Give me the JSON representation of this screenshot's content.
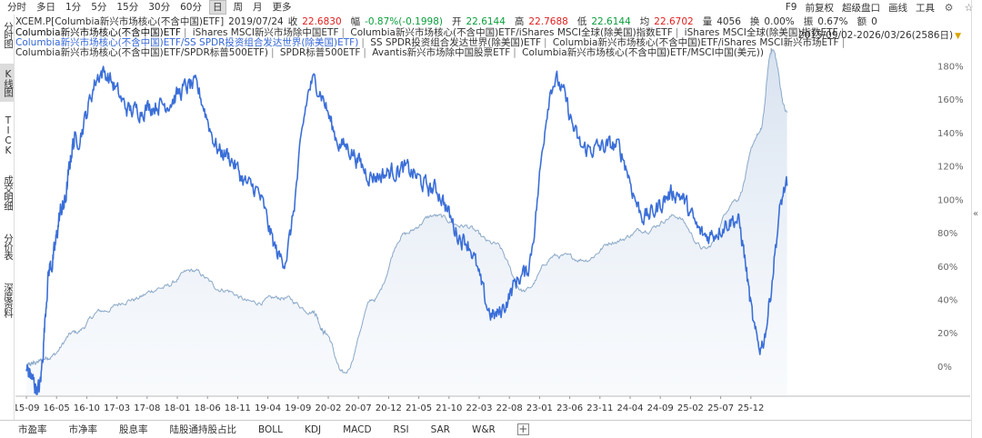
{
  "toolbar": {
    "periods": [
      "分时",
      "多日",
      "1分",
      "5分",
      "15分",
      "30分",
      "60分",
      "日",
      "周",
      "月",
      "更多"
    ],
    "active_period": "日",
    "right_items": [
      "F9",
      "前复权",
      "超级盘口",
      "画线",
      "工具"
    ],
    "icons": [
      "gear-icon",
      "star-icon"
    ]
  },
  "left_tabs": [
    "分时图",
    "K线图",
    "TICK",
    "成交明细",
    "分价表",
    "深度资料"
  ],
  "left_active": "K线图",
  "quote": {
    "code_name": "XCEM.P[Columbia新兴市场核心(不含中国)ETF]",
    "date": "2019/07/24",
    "close_label": "收",
    "close": "22.6830",
    "change_label": "幅",
    "change": "-0.87%(-0.1998)",
    "open_label": "开",
    "open": "22.6144",
    "high_label": "高",
    "high": "22.7688",
    "low_label": "低",
    "low": "22.6144",
    "avg_label": "均",
    "avg": "22.6702",
    "vol_label": "量",
    "vol": "4056",
    "turnover_label": "换",
    "turnover": "0.00%",
    "amplitude_label": "振",
    "amplitude": "0.67%",
    "amount_label": "额",
    "amount": "0"
  },
  "legend": {
    "items": [
      "Columbia新兴市场核心(不含中国)ETF",
      "iShares MSCI新兴市场除中国ETF",
      "Columbia新兴市场核心(不含中国)ETF/iShares MSCI全球(除美国)指数ETF",
      "iShares MSCI全球(除美国)指数ETF",
      "Columbia新兴市场核心(不含中国)ETF/SS SPDR投资组合发达世界(除美国)ETF)",
      "SS SPDR投资组合发达世界(除美国)ETF",
      "Columbia新兴市场核心(不含中国)ETF/iShares MSCI新兴市场ETF",
      "Columbia新兴市场核心(不含中国)ETF/SPDR标普500ETF)",
      "SPDR标普500ETF",
      "Avantis新兴市场除中国股票ETF",
      "Columbia新兴市场核心(不含中国)ETF/MSCI中国(美元))"
    ],
    "highlight_index": 4,
    "trailing": "|"
  },
  "range": "2015/09/02-2026/03/26(2586日)",
  "chart_data": {
    "type": "line",
    "x_ticks": [
      "15-09",
      "16-05",
      "16-10",
      "17-03",
      "17-08",
      "18-01",
      "18-06",
      "18-11",
      "19-04",
      "19-09",
      "20-02",
      "20-07",
      "20-12",
      "21-05",
      "21-10",
      "22-03",
      "22-08",
      "23-01",
      "23-06",
      "23-11",
      "24-04",
      "24-09",
      "25-02",
      "25-07",
      "25-12"
    ],
    "y_ticks": [
      "180%",
      "160%",
      "140%",
      "120%",
      "100%",
      "80%",
      "60%",
      "40%",
      "20%",
      "0%"
    ],
    "ylim": [
      -18,
      190
    ],
    "series": [
      {
        "color": "#3b6fd8",
        "style": "line-bold",
        "x": [
          0,
          0.4,
          0.8,
          1.2,
          1.6,
          2.5,
          3.5,
          4.5,
          5.5,
          6.5,
          7.5,
          8.5,
          9.5,
          10.5,
          11.5,
          12.5,
          13.5,
          14.5,
          15.5,
          16.5,
          17.5,
          18.5,
          19.5,
          20.5,
          21.5,
          22.5,
          23.5,
          24.3,
          25.2
        ],
        "values": [
          -2,
          -14,
          60,
          95,
          135,
          176,
          153,
          157,
          168,
          128,
          107,
          64,
          170,
          132,
          114,
          118,
          106,
          76,
          30,
          55,
          171,
          130,
          132,
          90,
          104,
          78,
          88,
          12,
          108
        ]
      },
      {
        "color": "#8aa8c8",
        "style": "area-light",
        "x": [
          0,
          0.3,
          0.8,
          1.6,
          2.5,
          3.5,
          4.5,
          5.5,
          6.5,
          7.5,
          8.5,
          9.5,
          9.9,
          10.5,
          11.5,
          12.5,
          13.5,
          14.5,
          15.5,
          16.5,
          17.5,
          18.5,
          19.5,
          20.5,
          21.5,
          22.5,
          23.5,
          24.3,
          24.7,
          25.2
        ],
        "values": [
          0,
          2,
          6,
          20,
          33,
          40,
          47,
          57,
          46,
          38,
          41,
          33,
          20,
          -5,
          40,
          79,
          90,
          84,
          73,
          45,
          66,
          64,
          75,
          82,
          90,
          70,
          100,
          140,
          190,
          152
        ]
      }
    ]
  },
  "bottom_tabs": [
    "市盈率",
    "市净率",
    "股息率",
    "陆股通持股占比",
    "BOLL",
    "KDJ",
    "MACD",
    "RSI",
    "SAR",
    "W&R"
  ],
  "bottom_add_icon": "plus-icon"
}
